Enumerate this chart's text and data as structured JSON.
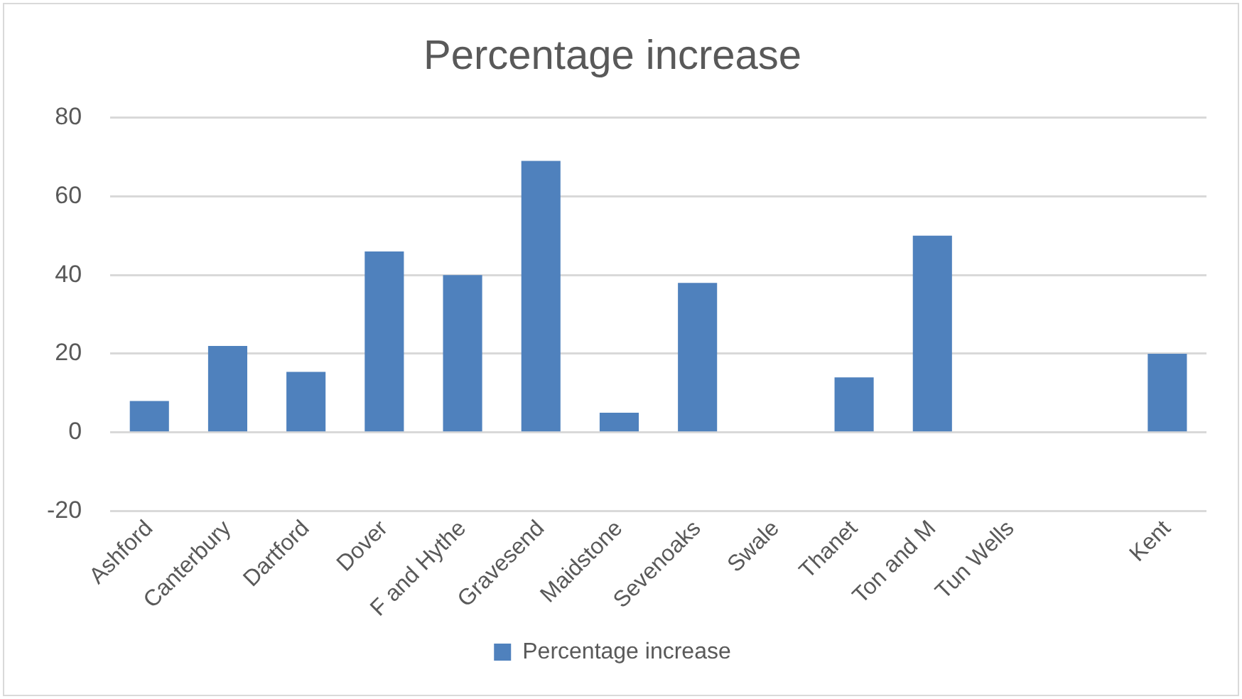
{
  "chart_data": {
    "type": "bar",
    "title": "Percentage increase",
    "categories": [
      "Ashford",
      "Canterbury",
      "Dartford",
      "Dover",
      "F and Hythe",
      "Gravesend",
      "Maidstone",
      "Sevenoaks",
      "Swale",
      "Thanet",
      "Ton and M",
      "Tun Wells",
      null,
      "Kent"
    ],
    "series": [
      {
        "name": "Percentage increase",
        "color": "#4f81bd",
        "values": [
          8,
          22,
          15.4,
          46,
          40,
          69,
          5,
          38,
          null,
          14,
          50,
          null,
          null,
          20
        ]
      }
    ],
    "ylim": [
      -20,
      80
    ],
    "yticks": [
      -20,
      0,
      20,
      40,
      60,
      80
    ],
    "grid": "y",
    "legend": "bottom"
  }
}
